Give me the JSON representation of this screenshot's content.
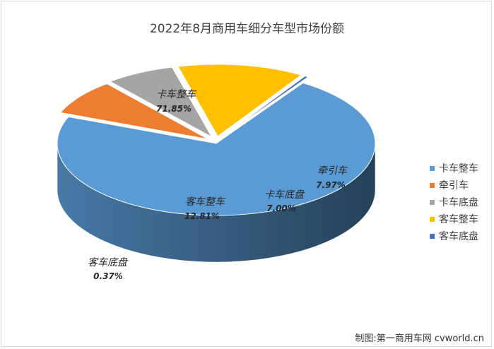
{
  "title": "2022年8月商用车细分车型市场份额",
  "credit": "制图:第一商用车网 cvworld.cn",
  "chart_data": {
    "type": "pie",
    "title": "2022年8月商用车细分车型市场份额",
    "style": "3d-exploded",
    "legend_position": "right",
    "slices": [
      {
        "name": "卡车整车",
        "value": 71.85,
        "label": "71.85%",
        "color": "#5B9BD5",
        "exploded": false
      },
      {
        "name": "牵引车",
        "value": 7.97,
        "label": "7.97%",
        "color": "#ED7D31",
        "exploded": true
      },
      {
        "name": "卡车底盘",
        "value": 7.0,
        "label": "7.00%",
        "color": "#A5A5A5",
        "exploded": true
      },
      {
        "name": "客车整车",
        "value": 12.81,
        "label": "12.81%",
        "color": "#FFC000",
        "exploded": true
      },
      {
        "name": "客车底盘",
        "value": 0.37,
        "label": "0.37%",
        "color": "#4472C4",
        "exploded": true
      }
    ]
  }
}
